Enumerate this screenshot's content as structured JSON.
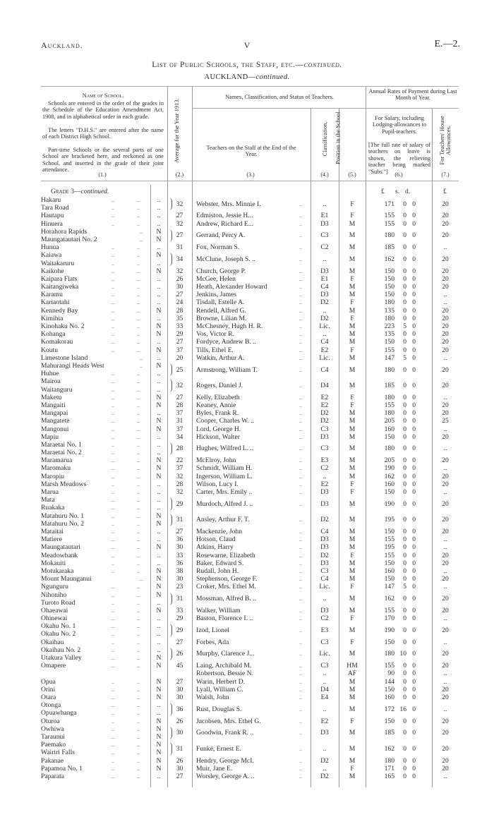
{
  "running_head": {
    "left": "Auckland.",
    "center": "V",
    "right": "E.—2."
  },
  "title": {
    "main": "List of Public Schools, the Staff, etc.—",
    "main_italic": "continued.",
    "sub": "AUCKLAND—",
    "sub_italic": "continued."
  },
  "headers": {
    "col1_title": "Name of School.",
    "col1_notes": [
      "Schools are entered in the order of the grades in the Schedule of the Education Amendment Act, 1908, and in alphabetical order in each grade.",
      "The letters \"D.H.S.\" are entered after the name of each District High School.",
      "Part-time Schools or the several parts of one School are bracketed here, and reckoned as one School, and inserted in the grade of their joint attendance."
    ],
    "col2": "Average for the Year 1913.",
    "group_teachers": "Names, Classification, and Status of Teachers.",
    "col3": "Teachers on the Staff at the End of the Year.",
    "col4": "Classification.",
    "col5": "Position in the School.",
    "group_rates": "Annual Rates of Payment during Last Month of Year.",
    "col6": "For Salary, including Lodging-allowances to Pupil-teachers.",
    "col6_note": "[The full rate of salary of teachers on leave is shown, the relieving teacher being marked \"Subs.\"]",
    "col7": "For Teachers' House Allowances.",
    "numbers": [
      "(1.)",
      "(2.)",
      "(3.)",
      "(4.)",
      "(5.)",
      "(6.)",
      "(7.)"
    ]
  },
  "grade": {
    "label": "Grade 3—",
    "label_italic": "continued.",
    "units": {
      "pounds": "£",
      "shillings": "s.",
      "pence": "d.",
      "house": "£"
    }
  },
  "groups": [
    {
      "schools": [
        [
          "Hakaru",
          ".."
        ],
        [
          "Tara Road",
          ".."
        ]
      ],
      "avg": "32",
      "teachers": [
        [
          "Webster, Mrs. Minnie I.",
          "..",
          "F",
          "171",
          "0",
          "0",
          "20"
        ]
      ]
    },
    {
      "schools": [
        [
          "Hautapu",
          ".."
        ]
      ],
      "avg": "27",
      "teachers": [
        [
          "Edmiston, Jessie H...",
          "E1",
          "F",
          "155",
          "0",
          "0",
          "20"
        ]
      ]
    },
    {
      "schools": [
        [
          "Hinuera",
          ".."
        ]
      ],
      "avg": "32",
      "teachers": [
        [
          "Andrew, Richard E...",
          "D3",
          "M",
          "155",
          "0",
          "0",
          "20"
        ]
      ]
    },
    {
      "schools": [
        [
          "Horahora Rapids",
          "N"
        ],
        [
          "Maungatautari No. 2",
          "N"
        ]
      ],
      "avg": "27",
      "teachers": [
        [
          "Gerrand, Percy A.",
          "C3",
          "M",
          "180",
          "0",
          "0",
          "20"
        ]
      ]
    },
    {
      "schools": [
        [
          "Hunua",
          ".."
        ]
      ],
      "avg": "31",
      "teachers": [
        [
          "Fox, Norman S.",
          "C2",
          "M",
          "185",
          "0",
          "0",
          ".."
        ]
      ]
    },
    {
      "schools": [
        [
          "Kaiawa",
          "N"
        ],
        [
          "Waitakaruru",
          ".."
        ]
      ],
      "avg": "34",
      "teachers": [
        [
          "McClune, Joseph S. ..",
          "..",
          "M",
          "162",
          "0",
          "0",
          "20"
        ]
      ]
    },
    {
      "schools": [
        [
          "Kaikohe",
          "N"
        ]
      ],
      "avg": "32",
      "teachers": [
        [
          "Church, George P.",
          "D3",
          "M",
          "150",
          "0",
          "0",
          "20"
        ]
      ]
    },
    {
      "schools": [
        [
          "Kaipara Flats",
          ".."
        ]
      ],
      "avg": "26",
      "teachers": [
        [
          "McGee, Helen",
          "E1",
          "F",
          "150",
          "0",
          "0",
          "20"
        ]
      ]
    },
    {
      "schools": [
        [
          "Kaitangiweka",
          ".."
        ]
      ],
      "avg": "30",
      "teachers": [
        [
          "Heath, Alexander Howard",
          "C4",
          "M",
          "150",
          "0",
          "0",
          "20"
        ]
      ]
    },
    {
      "schools": [
        [
          "Karamu",
          ".."
        ]
      ],
      "avg": "27",
      "teachers": [
        [
          "Jenkins, James",
          "D3",
          "M",
          "150",
          "0",
          "0",
          ".."
        ]
      ]
    },
    {
      "schools": [
        [
          "Kariaotahi",
          ".."
        ]
      ],
      "avg": "24",
      "teachers": [
        [
          "Tisdall, Estelle A.",
          "D2",
          "F",
          "180",
          "0",
          "0",
          ".."
        ]
      ]
    },
    {
      "schools": [
        [
          "Kennedy Bay",
          "N"
        ]
      ],
      "avg": "28",
      "teachers": [
        [
          "Rendell, Alfred G.",
          "..",
          "M",
          "135",
          "0",
          "0",
          "20"
        ]
      ]
    },
    {
      "schools": [
        [
          "Kimihia",
          ".."
        ]
      ],
      "avg": "35",
      "teachers": [
        [
          "Browne, Lilian M.",
          "D2",
          "F",
          "180",
          "0",
          "0",
          "20"
        ]
      ]
    },
    {
      "schools": [
        [
          "Kinohaku No. 2",
          "N"
        ]
      ],
      "avg": "33",
      "teachers": [
        [
          "McChesney, Hugh H. R.",
          "Lic.",
          "M",
          "223",
          "5",
          "0",
          "20"
        ]
      ]
    },
    {
      "schools": [
        [
          "Kohanga",
          "N"
        ]
      ],
      "avg": "29",
      "teachers": [
        [
          "Vos, Victor R.",
          "..",
          "M",
          "135",
          "0",
          "0",
          "20"
        ]
      ]
    },
    {
      "schools": [
        [
          "Komakorau",
          ".."
        ]
      ],
      "avg": "27",
      "teachers": [
        [
          "Fordyce, Andrew B. ..",
          "C4",
          "M",
          "150",
          "0",
          "0",
          "20"
        ]
      ]
    },
    {
      "schools": [
        [
          "Koutu",
          "N"
        ]
      ],
      "avg": "37",
      "teachers": [
        [
          "Tills, Ethel E.",
          "E2",
          "F",
          "155",
          "0",
          "0",
          "20"
        ]
      ]
    },
    {
      "schools": [
        [
          "Limestone Island",
          ".."
        ]
      ],
      "avg": "20",
      "teachers": [
        [
          "Watkin, Arthur A.",
          "Lic.",
          "M",
          "147",
          "5",
          "0",
          ".."
        ]
      ]
    },
    {
      "schools": [
        [
          "Mahurangi Heads West",
          "N"
        ],
        [
          "Huhue",
          ".."
        ]
      ],
      "avg": "25",
      "teachers": [
        [
          "Armstrong, William T.",
          "C4",
          "M",
          "180",
          "0",
          "0",
          "20"
        ]
      ]
    },
    {
      "schools": [
        [
          "Mairoa",
          ".."
        ],
        [
          "Waitanguru",
          ".."
        ]
      ],
      "avg": "32",
      "teachers": [
        [
          "Rogers, Daniel J.",
          "D4",
          "M",
          "185",
          "0",
          "0",
          "20"
        ]
      ]
    },
    {
      "schools": [
        [
          "Maketu",
          "N"
        ]
      ],
      "avg": "27",
      "teachers": [
        [
          "Kelly, Elizabeth",
          "E2",
          "F",
          "180",
          "0",
          "0",
          ".."
        ]
      ]
    },
    {
      "schools": [
        [
          "Mangaiti",
          "N"
        ]
      ],
      "avg": "28",
      "teachers": [
        [
          "Keaney, Annie",
          "E2",
          "F",
          "155",
          "0",
          "0",
          "20"
        ]
      ]
    },
    {
      "schools": [
        [
          "Mangapai",
          ".."
        ]
      ],
      "avg": "37",
      "teachers": [
        [
          "Byles, Frank R.",
          "D2",
          "M",
          "180",
          "0",
          "0",
          "20"
        ]
      ]
    },
    {
      "schools": [
        [
          "Mangatete",
          "N"
        ]
      ],
      "avg": "31",
      "teachers": [
        [
          "Cooper, Charles W. ..",
          "D2",
          "M",
          "205",
          "0",
          "0",
          "25"
        ]
      ]
    },
    {
      "schools": [
        [
          "Mangonui",
          "N"
        ]
      ],
      "avg": "37",
      "teachers": [
        [
          "Lord, George H.",
          "C3",
          "M",
          "160",
          "0",
          "0",
          ".."
        ]
      ]
    },
    {
      "schools": [
        [
          "Mapiu",
          ".."
        ]
      ],
      "avg": "34",
      "teachers": [
        [
          "Hickson, Walter",
          "D3",
          "M",
          "150",
          "0",
          "0",
          "20"
        ]
      ]
    },
    {
      "schools": [
        [
          "Maraetai No. 1",
          ".."
        ],
        [
          "Maraetai No. 2",
          ".."
        ]
      ],
      "avg": "28",
      "teachers": [
        [
          "Hughes, Wilfred L. ..",
          "C3",
          "M",
          "180",
          "0",
          "0",
          ".."
        ]
      ]
    },
    {
      "schools": [
        [
          "Maramarua",
          "N"
        ]
      ],
      "avg": "22",
      "teachers": [
        [
          "McElroy, John",
          "E3",
          "M",
          "205",
          "0",
          "0",
          "20"
        ]
      ]
    },
    {
      "schools": [
        [
          "Maromaku",
          "N"
        ]
      ],
      "avg": "37",
      "teachers": [
        [
          "Schmidt, William H.",
          "C2",
          "M",
          "190",
          "0",
          "0",
          ".."
        ]
      ]
    },
    {
      "schools": [
        [
          "Maropiu",
          "N"
        ]
      ],
      "avg": "32",
      "teachers": [
        [
          "Ingerson, William L.",
          "..",
          "M",
          "162",
          "0",
          "0",
          "20"
        ]
      ]
    },
    {
      "schools": [
        [
          "Marsh Meadows",
          ".."
        ]
      ],
      "avg": "28",
      "teachers": [
        [
          "Wilson, Lucy I.",
          "E2",
          "F",
          "160",
          "0",
          "0",
          "20"
        ]
      ]
    },
    {
      "schools": [
        [
          "Marua",
          ".."
        ]
      ],
      "avg": "32",
      "teachers": [
        [
          "Carter, Mrs. Emily ..",
          "D3",
          "F",
          "150",
          "0",
          "0",
          ".."
        ]
      ]
    },
    {
      "schools": [
        [
          "Mata",
          ".."
        ],
        [
          "Ruakaka",
          ".."
        ]
      ],
      "avg": "29",
      "teachers": [
        [
          "Murdoch, Alfred J. ..",
          "D3",
          "M",
          "190",
          "0",
          "0",
          "20"
        ]
      ]
    },
    {
      "schools": [
        [
          "Matahuru No. 1",
          "N"
        ],
        [
          "Matahuru No. 2",
          "N"
        ]
      ],
      "avg": "31",
      "teachers": [
        [
          "Ansley, Arthur F. T.",
          "D2",
          "M",
          "195",
          "0",
          "0",
          "20"
        ]
      ]
    },
    {
      "schools": [
        [
          "Mataitai",
          ".."
        ]
      ],
      "avg": "27",
      "teachers": [
        [
          "Mackenzie, John",
          "C4",
          "M",
          "150",
          "0",
          "0",
          "20"
        ]
      ]
    },
    {
      "schools": [
        [
          "Matiere",
          ".."
        ]
      ],
      "avg": "36",
      "teachers": [
        [
          "Hotson, Claud",
          "D3",
          "M",
          "155",
          "0",
          "0",
          ".."
        ]
      ]
    },
    {
      "schools": [
        [
          "Maungatautari",
          "N"
        ]
      ],
      "avg": "30",
      "teachers": [
        [
          "Atkins, Harry",
          "D3",
          "M",
          "195",
          "0",
          "0",
          ".."
        ]
      ]
    },
    {
      "schools": [
        [
          "Meadowbank",
          ".."
        ]
      ],
      "avg": "33",
      "teachers": [
        [
          "Rosewarne, Elizabeth",
          "D2",
          "F",
          "155",
          "0",
          "0",
          "20"
        ]
      ]
    },
    {
      "schools": [
        [
          "Mokauiti",
          ".."
        ]
      ],
      "avg": "36",
      "teachers": [
        [
          "Baker, Edward S.",
          "D3",
          "M",
          "150",
          "0",
          "0",
          "20"
        ]
      ]
    },
    {
      "schools": [
        [
          "Motukaraka",
          "N"
        ]
      ],
      "avg": "38",
      "teachers": [
        [
          "Rudall, John H.",
          "C3",
          "M",
          "160",
          "0",
          "0",
          ".."
        ]
      ]
    },
    {
      "schools": [
        [
          "Mount Maunganui",
          "N"
        ]
      ],
      "avg": "30",
      "teachers": [
        [
          "Stephenson, George F.",
          "C4",
          "M",
          "150",
          "0",
          "0",
          "20"
        ]
      ]
    },
    {
      "schools": [
        [
          "Ngunguru",
          "N"
        ]
      ],
      "avg": "23",
      "teachers": [
        [
          "Croker, Mrs. Ethel M.",
          "Lic.",
          "F",
          "147",
          "5",
          "0",
          ".."
        ]
      ]
    },
    {
      "schools": [
        [
          "Nihoniho",
          "N"
        ],
        [
          "Turoto Road",
          ".."
        ]
      ],
      "avg": "31",
      "teachers": [
        [
          "Mossman, Alfred B. ..",
          "..",
          "M",
          "162",
          "0",
          "0",
          "20"
        ]
      ]
    },
    {
      "schools": [
        [
          "Ohaeawai",
          "N"
        ]
      ],
      "avg": "33",
      "teachers": [
        [
          "Walker, William",
          "D3",
          "M",
          "155",
          "0",
          "0",
          "20"
        ]
      ]
    },
    {
      "schools": [
        [
          "Ohinewai",
          ".."
        ]
      ],
      "avg": "29",
      "teachers": [
        [
          "Baston, Florence I. ..",
          "C2",
          "F",
          "170",
          "0",
          "0",
          ".."
        ]
      ]
    },
    {
      "schools": [
        [
          "Okahu No. 1",
          ".."
        ],
        [
          "Okahu No. 2",
          ".."
        ]
      ],
      "avg": "29",
      "teachers": [
        [
          "Izod, Lionel",
          "E3",
          "M",
          "190",
          "0",
          "0",
          "20"
        ]
      ]
    },
    {
      "schools": [
        [
          "Okaihau",
          ".."
        ]
      ],
      "avg": "27",
      "teachers": [
        [
          "Forbes, Ada",
          "C3",
          "F",
          "150",
          "0",
          "0",
          ".."
        ]
      ]
    },
    {
      "schools": [
        [
          "Okaihau No. 2",
          ".."
        ],
        [
          "Utakura Valley",
          "N"
        ]
      ],
      "avg": "26",
      "teachers": [
        [
          "Murphy, Clarence J...",
          "Lic.",
          "M",
          "180",
          "10",
          "0",
          "20"
        ]
      ]
    },
    {
      "schools": [
        [
          "Omapere",
          "N"
        ]
      ],
      "avg": "45",
      "teachers": [
        [
          "Laing, Archibald M.",
          "C3",
          "HM",
          "155",
          "0",
          "0",
          "20"
        ],
        [
          "Robertson, Bessie N.",
          "..",
          "AF",
          "90",
          "0",
          "0",
          ".."
        ]
      ]
    },
    {
      "schools": [
        [
          "Opua",
          "N"
        ]
      ],
      "avg": "27",
      "teachers": [
        [
          "Warin, Herbert D.",
          "..",
          "M",
          "144",
          "0",
          "0",
          ".."
        ]
      ]
    },
    {
      "schools": [
        [
          "Orini",
          "N"
        ]
      ],
      "avg": "30",
      "teachers": [
        [
          "Lyall, William C.",
          "D4",
          "M",
          "150",
          "0",
          "0",
          "20"
        ]
      ]
    },
    {
      "schools": [
        [
          "Otara",
          "N"
        ]
      ],
      "avg": "30",
      "teachers": [
        [
          "Walsh, John",
          "E4",
          "M",
          "160",
          "0",
          "0",
          "20"
        ]
      ]
    },
    {
      "schools": [
        [
          "Otonga",
          ".."
        ],
        [
          "Opuawhanga",
          ".."
        ]
      ],
      "avg": "36",
      "teachers": [
        [
          "Rust, Douglas S.",
          "..",
          "M",
          "172",
          "16",
          "0",
          ".."
        ]
      ]
    },
    {
      "schools": [
        [
          "Oturoa",
          "N"
        ]
      ],
      "avg": "26",
      "teachers": [
        [
          "Jacobsen, Mrs. Ethel G.",
          "E2",
          "F",
          "150",
          "0",
          "0",
          "20"
        ]
      ]
    },
    {
      "schools": [
        [
          "Owhiwa",
          "N"
        ],
        [
          "Taraunui",
          "N"
        ]
      ],
      "avg": "30",
      "teachers": [
        [
          "Goodwin, Frank R. ..",
          "D3",
          "M",
          "185",
          "0",
          "0",
          "20"
        ]
      ]
    },
    {
      "schools": [
        [
          "Paemako",
          "N"
        ],
        [
          "Wairiri Falls",
          "N"
        ]
      ],
      "avg": "31",
      "teachers": [
        [
          "Funké, Ernest E.",
          "..",
          "M",
          "162",
          "0",
          "0",
          "20"
        ]
      ]
    },
    {
      "schools": [
        [
          "Pakanae",
          "N"
        ]
      ],
      "avg": "26",
      "teachers": [
        [
          "Hendry, George McI.",
          "D2",
          "M",
          "180",
          "0",
          "0",
          "20"
        ]
      ]
    },
    {
      "schools": [
        [
          "Papamoa No. 1",
          "N"
        ]
      ],
      "avg": "30",
      "teachers": [
        [
          "Muir, Jane E.",
          "..",
          "F",
          "171",
          "0",
          "0",
          "20"
        ]
      ]
    },
    {
      "schools": [
        [
          "Paparata",
          ".."
        ]
      ],
      "avg": "27",
      "teachers": [
        [
          "Worsley, George A. ..",
          "D2",
          "M",
          "165",
          "0",
          "0",
          ".."
        ]
      ]
    }
  ]
}
